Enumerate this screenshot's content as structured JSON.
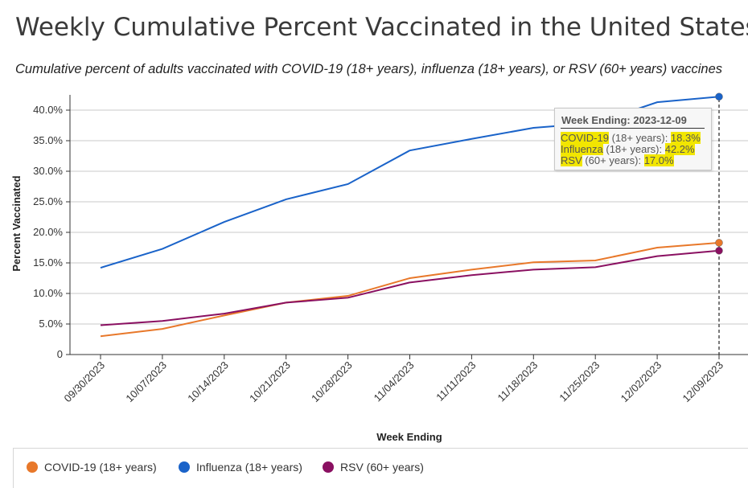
{
  "title": "Weekly Cumulative Percent Vaccinated in the United States",
  "subtitle": "Cumulative percent of adults vaccinated with COVID-19 (18+ years), influenza (18+ years), or RSV (60+ years) vaccines",
  "tooltip": {
    "heading": "Week Ending: 2023-12-09",
    "rows": [
      {
        "name": "COVID-19",
        "age": " (18+ years): ",
        "value": "18.3%"
      },
      {
        "name": "Influenza",
        "age": " (18+ years): ",
        "value": "42.2%"
      },
      {
        "name": "RSV",
        "age": " (60+ years): ",
        "value": "17.0%"
      }
    ]
  },
  "chart_data": {
    "type": "line",
    "title": "Weekly Cumulative Percent Vaccinated in the United States",
    "xlabel": "Week Ending",
    "ylabel": "Percent Vaccinated",
    "categories": [
      "09/30/2023",
      "10/07/2023",
      "10/14/2023",
      "10/21/2023",
      "10/28/2023",
      "11/04/2023",
      "11/11/2023",
      "11/18/2023",
      "11/25/2023",
      "12/02/2023",
      "12/09/2023"
    ],
    "yticks": [
      "0",
      "5.0%",
      "10.0%",
      "15.0%",
      "20.0%",
      "25.0%",
      "30.0%",
      "35.0%",
      "40.0%"
    ],
    "ylim": [
      0,
      42.5
    ],
    "grid": true,
    "legend_position": "bottom",
    "highlighted_category": "12/09/2023",
    "series": [
      {
        "name": "Influenza (18+ years)",
        "color": "#1a63c9",
        "values": [
          14.2,
          17.3,
          21.7,
          25.4,
          27.9,
          33.4,
          35.3,
          37.1,
          37.9,
          41.3,
          42.2
        ]
      },
      {
        "name": "COVID-19 (18+ years)",
        "color": "#e8782a",
        "values": [
          3.0,
          4.2,
          6.4,
          8.5,
          9.6,
          12.5,
          13.9,
          15.1,
          15.4,
          17.5,
          18.3
        ]
      },
      {
        "name": "RSV (60+ years)",
        "color": "#8a1061",
        "values": [
          4.8,
          5.5,
          6.7,
          8.5,
          9.3,
          11.8,
          13.0,
          13.9,
          14.3,
          16.1,
          17.0
        ]
      }
    ]
  },
  "legend": [
    {
      "label": "COVID-19 (18+ years)",
      "color": "#e8782a"
    },
    {
      "label": "Influenza (18+ years)",
      "color": "#1a63c9"
    },
    {
      "label": "RSV (60+ years)",
      "color": "#8a1061"
    }
  ]
}
